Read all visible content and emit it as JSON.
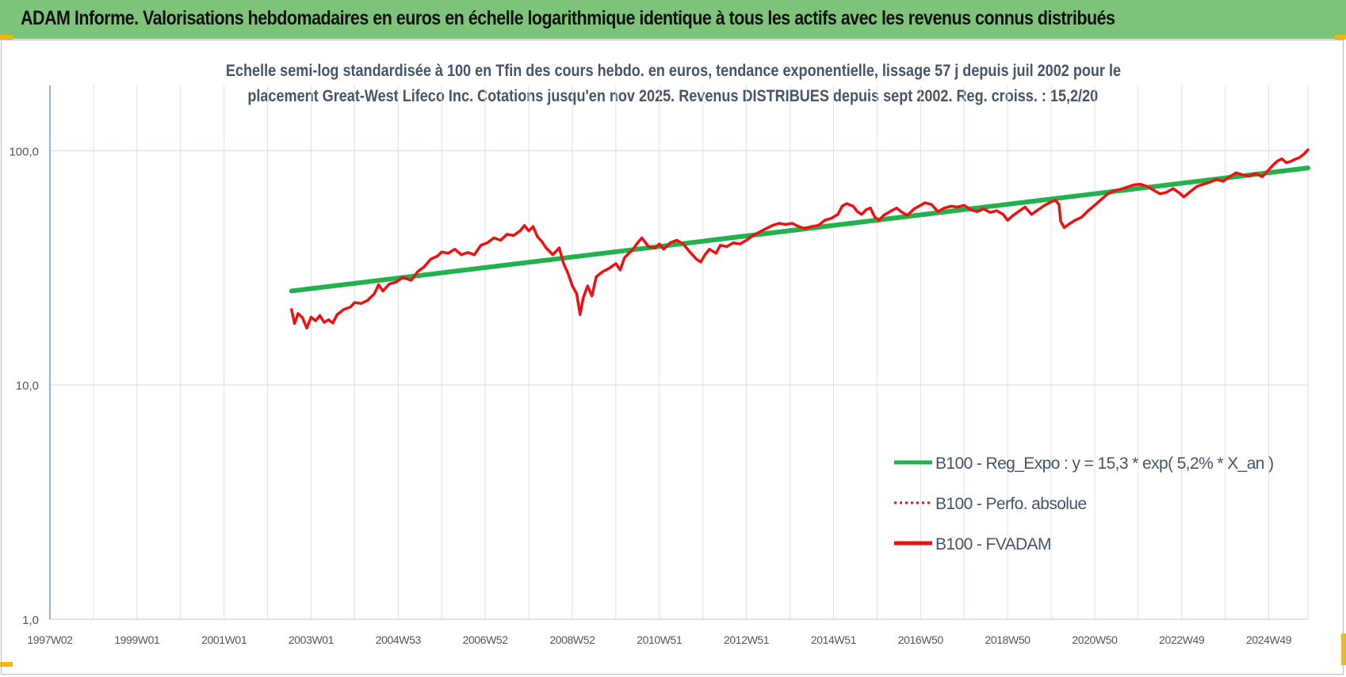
{
  "header": {
    "title": "ADAM Informe. Valorisations hebdomadaires en euros en échelle logarithmique identique à tous les actifs avec les revenus connus distribués"
  },
  "colors": {
    "banner": "#7dc47a",
    "regression": "#22b14c",
    "fvadam": "#ee1111",
    "perfo": "#ee1111",
    "subtitle_text": "#44546a",
    "corner_marks": "#f5b800"
  },
  "chart_data": {
    "type": "line",
    "title_line1": "Echelle semi-log standardisée à 100 en Tfin des cours hebdo. en euros, tendance exponentielle, lissage 57 j depuis juil 2002 pour le",
    "title_line2": "placement Great-West Lifeco Inc.  Cotations jusqu'en nov 2025. Revenus DISTRIBUES depuis sept 2002. Reg. croiss. : 15,2/20",
    "y_scale": "log",
    "ylim": [
      1,
      190
    ],
    "y_ticks": [
      {
        "value": 1,
        "label": "1,0"
      },
      {
        "value": 10,
        "label": "10,0"
      },
      {
        "value": 100,
        "label": "100,0"
      }
    ],
    "x_unit": "year",
    "xlim": [
      1997.0,
      2025.9
    ],
    "x_ticks": [
      {
        "value": 1997.0,
        "label": "1997W02"
      },
      {
        "value": 1999.0,
        "label": "1999W01"
      },
      {
        "value": 2001.0,
        "label": "2001W01"
      },
      {
        "value": 2003.0,
        "label": "2003W01"
      },
      {
        "value": 2005.0,
        "label": "2004W53"
      },
      {
        "value": 2007.0,
        "label": "2006W52"
      },
      {
        "value": 2009.0,
        "label": "2008W52"
      },
      {
        "value": 2011.0,
        "label": "2010W51"
      },
      {
        "value": 2013.0,
        "label": "2012W51"
      },
      {
        "value": 2015.0,
        "label": "2014W51"
      },
      {
        "value": 2017.0,
        "label": "2016W50"
      },
      {
        "value": 2019.0,
        "label": "2018W50"
      },
      {
        "value": 2021.0,
        "label": "2020W50"
      },
      {
        "value": 2023.0,
        "label": "2022W49"
      },
      {
        "value": 2025.0,
        "label": "2024W49"
      }
    ],
    "grid": true,
    "legend_position": "bottom-right",
    "series": [
      {
        "name": "B100 - Reg_Expo : y = 15,3 * exp( 5,2% *  X_an )",
        "color": "#22b14c",
        "style": "solid",
        "points": [
          [
            2002.55,
            25.2
          ],
          [
            2025.9,
            84.5
          ]
        ]
      },
      {
        "name": "B100 - Perfo. absolue",
        "color": "#ee1111",
        "style": "dotted",
        "points": []
      },
      {
        "name": "B100 - FVADAM",
        "color": "#ee1111",
        "style": "solid",
        "points": [
          [
            2002.55,
            21.0
          ],
          [
            2002.62,
            18.3
          ],
          [
            2002.7,
            20.2
          ],
          [
            2002.8,
            19.4
          ],
          [
            2002.9,
            17.5
          ],
          [
            2003.0,
            19.5
          ],
          [
            2003.1,
            18.8
          ],
          [
            2003.2,
            19.8
          ],
          [
            2003.3,
            18.5
          ],
          [
            2003.4,
            19.0
          ],
          [
            2003.5,
            18.4
          ],
          [
            2003.6,
            20.0
          ],
          [
            2003.75,
            21.0
          ],
          [
            2003.9,
            21.5
          ],
          [
            2004.0,
            22.5
          ],
          [
            2004.15,
            22.3
          ],
          [
            2004.3,
            23.0
          ],
          [
            2004.45,
            24.5
          ],
          [
            2004.55,
            26.8
          ],
          [
            2004.65,
            25.2
          ],
          [
            2004.8,
            27.0
          ],
          [
            2004.95,
            27.5
          ],
          [
            2005.1,
            28.8
          ],
          [
            2005.3,
            28.0
          ],
          [
            2005.45,
            30.5
          ],
          [
            2005.6,
            32.0
          ],
          [
            2005.75,
            34.5
          ],
          [
            2005.9,
            35.5
          ],
          [
            2006.0,
            37.0
          ],
          [
            2006.15,
            36.5
          ],
          [
            2006.3,
            38.0
          ],
          [
            2006.45,
            36.0
          ],
          [
            2006.6,
            36.8
          ],
          [
            2006.75,
            36.0
          ],
          [
            2006.9,
            39.5
          ],
          [
            2007.05,
            40.5
          ],
          [
            2007.2,
            42.5
          ],
          [
            2007.35,
            41.5
          ],
          [
            2007.5,
            44.0
          ],
          [
            2007.65,
            43.5
          ],
          [
            2007.8,
            45.5
          ],
          [
            2007.9,
            48.0
          ],
          [
            2008.0,
            45.5
          ],
          [
            2008.1,
            47.5
          ],
          [
            2008.2,
            43.0
          ],
          [
            2008.3,
            41.0
          ],
          [
            2008.4,
            38.5
          ],
          [
            2008.55,
            36.0
          ],
          [
            2008.7,
            38.5
          ],
          [
            2008.8,
            33.0
          ],
          [
            2008.9,
            30.0
          ],
          [
            2009.0,
            26.5
          ],
          [
            2009.1,
            24.5
          ],
          [
            2009.18,
            20.0
          ],
          [
            2009.25,
            23.5
          ],
          [
            2009.35,
            26.5
          ],
          [
            2009.45,
            24.0
          ],
          [
            2009.55,
            29.0
          ],
          [
            2009.7,
            30.5
          ],
          [
            2009.85,
            31.5
          ],
          [
            2010.0,
            33.0
          ],
          [
            2010.1,
            31.0
          ],
          [
            2010.2,
            35.0
          ],
          [
            2010.3,
            36.5
          ],
          [
            2010.4,
            38.0
          ],
          [
            2010.5,
            40.5
          ],
          [
            2010.6,
            42.5
          ],
          [
            2010.75,
            39.0
          ],
          [
            2010.9,
            38.5
          ],
          [
            2011.0,
            40.0
          ],
          [
            2011.1,
            38.0
          ],
          [
            2011.25,
            40.5
          ],
          [
            2011.4,
            41.5
          ],
          [
            2011.55,
            40.0
          ],
          [
            2011.7,
            37.0
          ],
          [
            2011.85,
            34.5
          ],
          [
            2011.95,
            33.5
          ],
          [
            2012.05,
            36.0
          ],
          [
            2012.15,
            38.0
          ],
          [
            2012.3,
            36.5
          ],
          [
            2012.4,
            39.5
          ],
          [
            2012.55,
            39.0
          ],
          [
            2012.7,
            40.5
          ],
          [
            2012.85,
            40.0
          ],
          [
            2013.0,
            41.5
          ],
          [
            2013.15,
            43.5
          ],
          [
            2013.3,
            45.0
          ],
          [
            2013.45,
            46.5
          ],
          [
            2013.6,
            48.0
          ],
          [
            2013.75,
            49.0
          ],
          [
            2013.9,
            48.5
          ],
          [
            2014.05,
            49.0
          ],
          [
            2014.2,
            47.5
          ],
          [
            2014.35,
            46.5
          ],
          [
            2014.5,
            47.5
          ],
          [
            2014.65,
            48.0
          ],
          [
            2014.8,
            50.5
          ],
          [
            2014.95,
            51.5
          ],
          [
            2015.1,
            53.5
          ],
          [
            2015.2,
            58.0
          ],
          [
            2015.3,
            59.5
          ],
          [
            2015.45,
            58.0
          ],
          [
            2015.55,
            55.0
          ],
          [
            2015.65,
            53.5
          ],
          [
            2015.75,
            56.0
          ],
          [
            2015.85,
            57.0
          ],
          [
            2015.95,
            52.0
          ],
          [
            2016.05,
            50.5
          ],
          [
            2016.15,
            53.0
          ],
          [
            2016.3,
            55.0
          ],
          [
            2016.45,
            57.0
          ],
          [
            2016.55,
            55.0
          ],
          [
            2016.7,
            53.0
          ],
          [
            2016.85,
            56.5
          ],
          [
            2017.0,
            58.5
          ],
          [
            2017.1,
            60.0
          ],
          [
            2017.25,
            59.0
          ],
          [
            2017.4,
            55.0
          ],
          [
            2017.55,
            57.0
          ],
          [
            2017.7,
            58.0
          ],
          [
            2017.85,
            57.5
          ],
          [
            2018.0,
            58.5
          ],
          [
            2018.15,
            56.0
          ],
          [
            2018.3,
            55.0
          ],
          [
            2018.45,
            56.5
          ],
          [
            2018.6,
            54.5
          ],
          [
            2018.75,
            55.5
          ],
          [
            2018.9,
            53.5
          ],
          [
            2019.0,
            50.5
          ],
          [
            2019.1,
            52.5
          ],
          [
            2019.25,
            55.0
          ],
          [
            2019.4,
            57.5
          ],
          [
            2019.55,
            53.5
          ],
          [
            2019.7,
            56.0
          ],
          [
            2019.85,
            58.5
          ],
          [
            2020.0,
            60.5
          ],
          [
            2020.1,
            61.5
          ],
          [
            2020.18,
            59.0
          ],
          [
            2020.22,
            50.0
          ],
          [
            2020.3,
            47.0
          ],
          [
            2020.4,
            48.5
          ],
          [
            2020.55,
            50.5
          ],
          [
            2020.7,
            52.0
          ],
          [
            2020.85,
            55.5
          ],
          [
            2021.0,
            58.5
          ],
          [
            2021.15,
            62.0
          ],
          [
            2021.3,
            65.5
          ],
          [
            2021.45,
            67.5
          ],
          [
            2021.6,
            68.5
          ],
          [
            2021.75,
            70.0
          ],
          [
            2021.9,
            71.5
          ],
          [
            2022.05,
            72.0
          ],
          [
            2022.2,
            70.5
          ],
          [
            2022.35,
            68.0
          ],
          [
            2022.5,
            65.5
          ],
          [
            2022.65,
            66.5
          ],
          [
            2022.8,
            69.0
          ],
          [
            2022.95,
            66.0
          ],
          [
            2023.05,
            63.5
          ],
          [
            2023.2,
            67.0
          ],
          [
            2023.35,
            70.5
          ],
          [
            2023.5,
            72.0
          ],
          [
            2023.65,
            73.5
          ],
          [
            2023.8,
            75.5
          ],
          [
            2023.95,
            74.0
          ],
          [
            2024.1,
            77.5
          ],
          [
            2024.25,
            80.5
          ],
          [
            2024.4,
            79.0
          ],
          [
            2024.55,
            78.0
          ],
          [
            2024.7,
            80.0
          ],
          [
            2024.85,
            77.5
          ],
          [
            2025.0,
            83.0
          ],
          [
            2025.1,
            87.0
          ],
          [
            2025.2,
            90.5
          ],
          [
            2025.3,
            92.5
          ],
          [
            2025.4,
            89.0
          ],
          [
            2025.5,
            90.0
          ],
          [
            2025.6,
            92.0
          ],
          [
            2025.7,
            93.5
          ],
          [
            2025.8,
            96.5
          ],
          [
            2025.9,
            101.0
          ]
        ]
      }
    ]
  }
}
